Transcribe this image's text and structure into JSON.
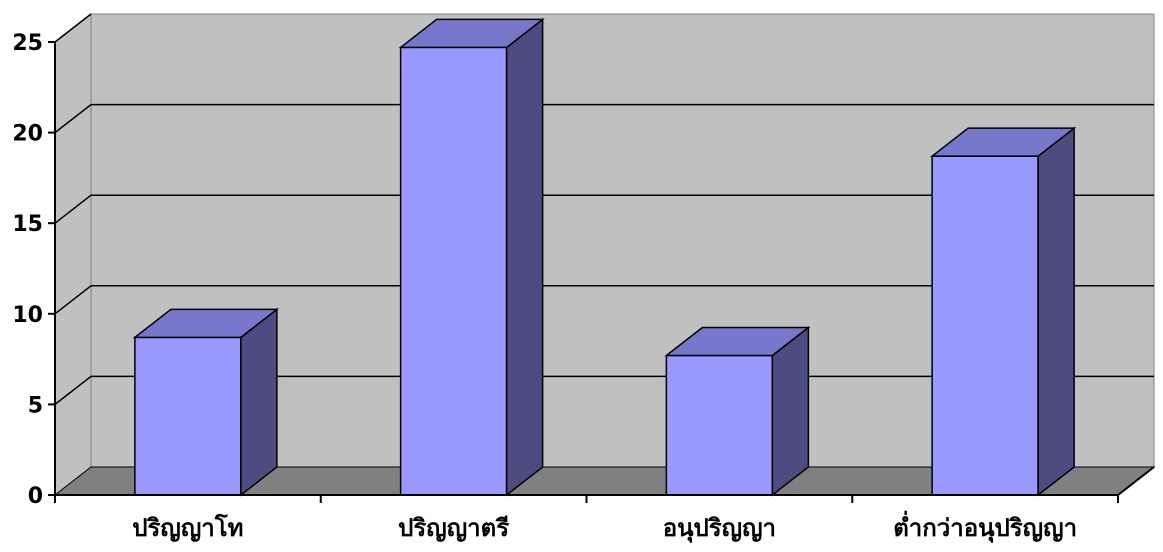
{
  "chart_data": {
    "type": "bar",
    "title": "",
    "xlabel": "",
    "ylabel": "",
    "categories": [
      "ปริญญาโท",
      "ปริญญาตรี",
      "อนุปริญญา",
      "ต่ำกว่าอนุปริญญา"
    ],
    "values": [
      8.7,
      24.7,
      7.7,
      18.7
    ],
    "ylim": [
      0,
      25
    ],
    "yticks": [
      0,
      5,
      10,
      15,
      20,
      25
    ],
    "grid": true,
    "legend": "none",
    "style": "3d-column"
  },
  "colors": {
    "wall": "#c0c0c0",
    "floor": "#808080",
    "bar_front": "#9999ff",
    "bar_top": "#7777cc",
    "bar_side": "#4c4c80",
    "grid": "#000000"
  }
}
